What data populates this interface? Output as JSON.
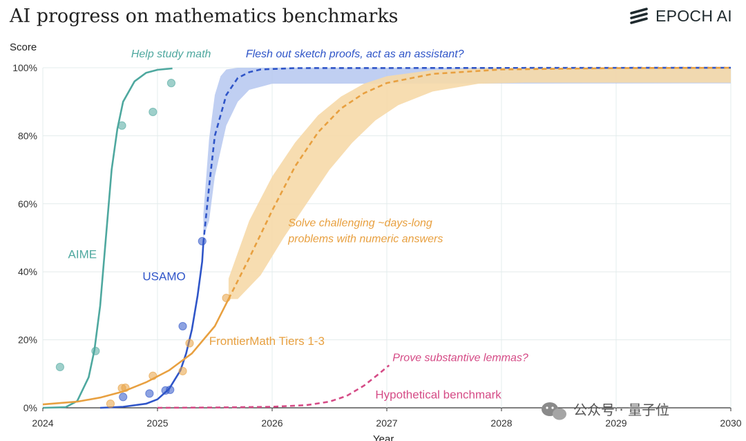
{
  "header": {
    "title": "AI progress on mathematics benchmarks",
    "brand": "EPOCH AI",
    "brand_icon": "epoch-stripes-icon"
  },
  "watermark": {
    "text": "公众号 · 量子位",
    "icon": "wechat-icon"
  },
  "colors": {
    "aime": "#4ea89f",
    "usamo": "#2f55c8",
    "usamo_band": "#b5c7f0",
    "frontier": "#e8a040",
    "frontier_band": "#f6d9a8",
    "hypo": "#d54b86",
    "grid": "#e3ecec"
  },
  "chart_data": {
    "type": "line",
    "title": "AI progress on mathematics benchmarks",
    "xlabel": "Year",
    "ylabel": "Score",
    "xlim": [
      2024,
      2030
    ],
    "ylim": [
      0,
      100
    ],
    "x_ticks": [
      2024,
      2025,
      2026,
      2027,
      2028,
      2029,
      2030
    ],
    "y_ticks": [
      {
        "v": 0,
        "label": "0%"
      },
      {
        "v": 20,
        "label": "20%"
      },
      {
        "v": 40,
        "label": "40%"
      },
      {
        "v": 60,
        "label": "60%"
      },
      {
        "v": 80,
        "label": "80%"
      },
      {
        "v": 100,
        "label": "100%"
      }
    ],
    "grid": true,
    "series": [
      {
        "name": "AIME",
        "color": "#4ea89f",
        "label_at": [
          2024.22,
          44
        ],
        "fit": [
          [
            2024.0,
            0
          ],
          [
            2024.2,
            0.2
          ],
          [
            2024.3,
            2
          ],
          [
            2024.4,
            9
          ],
          [
            2024.45,
            17
          ],
          [
            2024.5,
            30
          ],
          [
            2024.55,
            50
          ],
          [
            2024.6,
            70
          ],
          [
            2024.65,
            82
          ],
          [
            2024.7,
            90
          ],
          [
            2024.8,
            96
          ],
          [
            2024.9,
            98.5
          ],
          [
            2025.0,
            99.4
          ],
          [
            2025.13,
            99.8
          ]
        ],
        "points": [
          [
            2024.15,
            12
          ],
          [
            2024.46,
            16.7
          ],
          [
            2024.69,
            83
          ],
          [
            2024.96,
            87
          ],
          [
            2025.12,
            95.5
          ]
        ]
      },
      {
        "name": "USAMO",
        "color": "#2f55c8",
        "label_at": [
          2024.87,
          37.5
        ],
        "fit": [
          [
            2024.5,
            0
          ],
          [
            2024.7,
            0.3
          ],
          [
            2024.9,
            1.2
          ],
          [
            2025.0,
            2.5
          ],
          [
            2025.1,
            5.5
          ],
          [
            2025.2,
            11
          ],
          [
            2025.25,
            16
          ],
          [
            2025.3,
            23
          ],
          [
            2025.35,
            33
          ],
          [
            2025.39,
            43
          ],
          [
            2025.4,
            48.5
          ]
        ],
        "projection": [
          [
            2025.4,
            48.5
          ],
          [
            2025.45,
            65
          ],
          [
            2025.5,
            80
          ],
          [
            2025.6,
            92
          ],
          [
            2025.7,
            97
          ],
          [
            2025.8,
            98.7
          ],
          [
            2025.9,
            99.5
          ],
          [
            2026.2,
            99.9
          ],
          [
            2030,
            100
          ]
        ],
        "band_upper": [
          [
            2025.4,
            57
          ],
          [
            2025.45,
            79
          ],
          [
            2025.5,
            92
          ],
          [
            2025.55,
            97.5
          ],
          [
            2025.6,
            99.5
          ],
          [
            2025.7,
            100
          ],
          [
            2030,
            100
          ]
        ],
        "band_lower": [
          [
            2025.4,
            50
          ],
          [
            2025.45,
            55
          ],
          [
            2025.5,
            68
          ],
          [
            2025.6,
            83
          ],
          [
            2025.7,
            90
          ],
          [
            2025.8,
            93.5
          ],
          [
            2026.0,
            95.3
          ],
          [
            2030,
            95.4
          ]
        ],
        "points": [
          [
            2024.7,
            3.2
          ],
          [
            2024.93,
            4.2
          ],
          [
            2025.07,
            5.1
          ],
          [
            2025.11,
            5.3
          ],
          [
            2025.22,
            24
          ],
          [
            2025.39,
            49
          ]
        ]
      },
      {
        "name": "FrontierMath Tiers 1-3",
        "color": "#e8a040",
        "label_at": [
          2025.45,
          18.5
        ],
        "fit": [
          [
            2024.0,
            1
          ],
          [
            2024.3,
            1.8
          ],
          [
            2024.5,
            3
          ],
          [
            2024.7,
            4.8
          ],
          [
            2024.9,
            7.5
          ],
          [
            2025.1,
            11
          ],
          [
            2025.3,
            16
          ],
          [
            2025.5,
            24
          ],
          [
            2025.62,
            32
          ]
        ],
        "projection": [
          [
            2025.62,
            32
          ],
          [
            2025.8,
            44
          ],
          [
            2026.0,
            58
          ],
          [
            2026.2,
            71
          ],
          [
            2026.4,
            81
          ],
          [
            2026.6,
            88
          ],
          [
            2026.8,
            92.5
          ],
          [
            2027.0,
            95.5
          ],
          [
            2027.4,
            98.2
          ],
          [
            2028.0,
            99.5
          ],
          [
            2029.0,
            99.9
          ],
          [
            2030,
            100
          ]
        ],
        "band_upper": [
          [
            2025.62,
            38
          ],
          [
            2025.8,
            55
          ],
          [
            2026.0,
            68
          ],
          [
            2026.2,
            78
          ],
          [
            2026.4,
            86
          ],
          [
            2026.6,
            91.5
          ],
          [
            2026.8,
            95.3
          ],
          [
            2027.0,
            97.5
          ],
          [
            2027.4,
            99.3
          ],
          [
            2028.0,
            100
          ],
          [
            2030,
            100
          ]
        ],
        "band_lower": [
          [
            2025.62,
            32
          ],
          [
            2025.7,
            32
          ],
          [
            2025.9,
            39
          ],
          [
            2026.1,
            50
          ],
          [
            2026.3,
            60
          ],
          [
            2026.5,
            70
          ],
          [
            2026.7,
            78
          ],
          [
            2026.9,
            84.5
          ],
          [
            2027.1,
            89
          ],
          [
            2027.4,
            93
          ],
          [
            2027.8,
            95.3
          ],
          [
            2028.2,
            95.6
          ],
          [
            2030,
            95.6
          ]
        ],
        "points": [
          [
            2024.59,
            1.2
          ],
          [
            2024.69,
            5.8
          ],
          [
            2024.72,
            5.9
          ],
          [
            2024.96,
            9.4
          ],
          [
            2025.22,
            10.8
          ],
          [
            2025.28,
            19
          ],
          [
            2025.6,
            32.3
          ]
        ]
      },
      {
        "name": "Hypothetical benchmark",
        "color": "#d54b86",
        "label_at": [
          2026.9,
          2.7
        ],
        "projection": [
          [
            2025.0,
            0
          ],
          [
            2025.5,
            0.1
          ],
          [
            2026.0,
            0.3
          ],
          [
            2026.3,
            0.8
          ],
          [
            2026.5,
            1.8
          ],
          [
            2026.65,
            3.5
          ],
          [
            2026.8,
            6.5
          ],
          [
            2026.92,
            9.7
          ],
          [
            2027.02,
            12.5
          ]
        ]
      }
    ],
    "annotations": [
      {
        "text": "Help study math",
        "color": "#4ea89f",
        "at": [
          2024.77,
          103
        ]
      },
      {
        "text": "Flesh out sketch proofs, act as an assistant?",
        "color": "#2f55c8",
        "at": [
          2025.77,
          103
        ]
      },
      {
        "text": "Solve challenging ~days-long",
        "color": "#e8a040",
        "at": [
          2026.14,
          53.4
        ]
      },
      {
        "text": "problems with numeric answers",
        "color": "#e8a040",
        "at": [
          2026.14,
          48.7
        ]
      },
      {
        "text": "Prove substantive lemmas?",
        "color": "#d54b86",
        "at": [
          2027.05,
          13.7
        ]
      }
    ]
  }
}
